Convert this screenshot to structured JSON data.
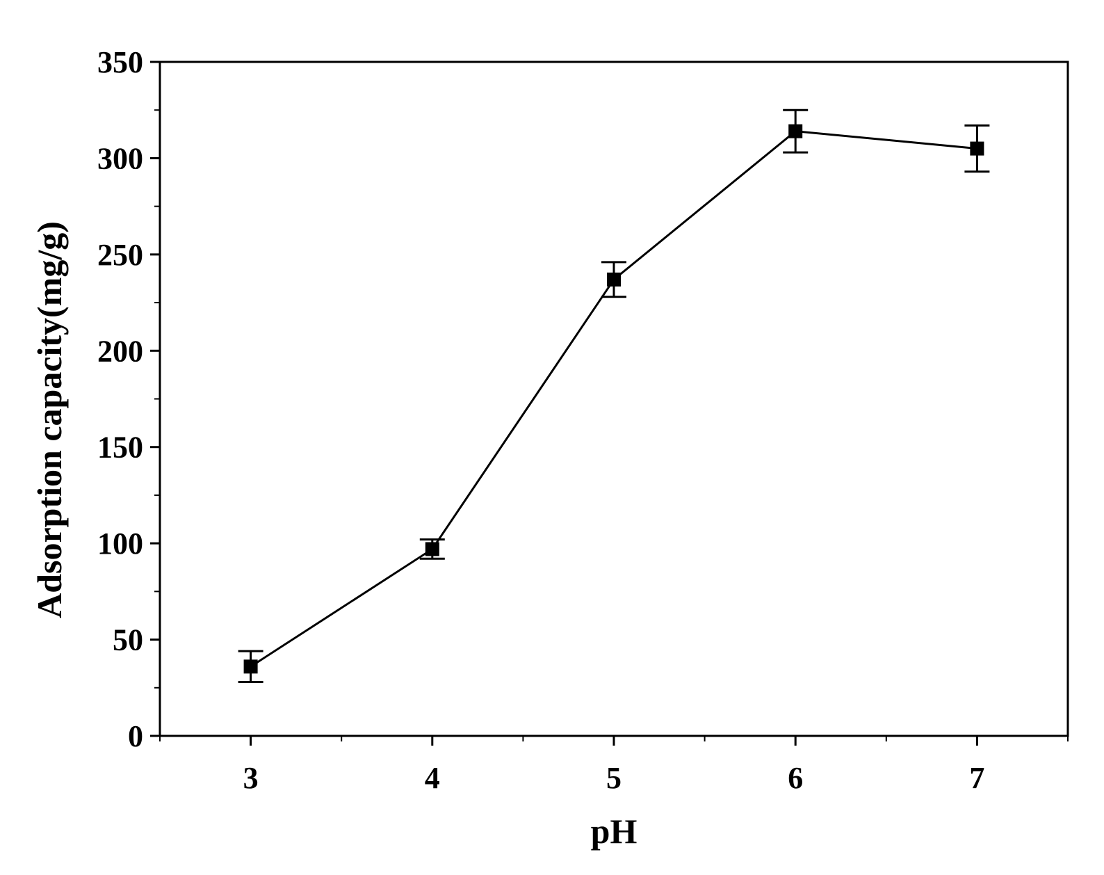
{
  "chart_data": {
    "type": "line",
    "title": "",
    "xlabel": "pH",
    "ylabel": "Adsorption capacity(mg/g)",
    "xlim": [
      2.5,
      7.5
    ],
    "ylim": [
      0,
      350
    ],
    "x_ticks": [
      "3",
      "4",
      "5",
      "6",
      "7"
    ],
    "y_ticks": [
      "0",
      "50",
      "100",
      "150",
      "200",
      "250",
      "300",
      "350"
    ],
    "grid": false,
    "legend": "none",
    "series": [
      {
        "x": [
          3,
          4,
          5,
          6,
          7
        ],
        "y": [
          36,
          97,
          237,
          314,
          305
        ],
        "error": [
          8,
          5,
          9,
          11,
          12
        ],
        "color": "#000000",
        "marker": "square"
      }
    ]
  }
}
